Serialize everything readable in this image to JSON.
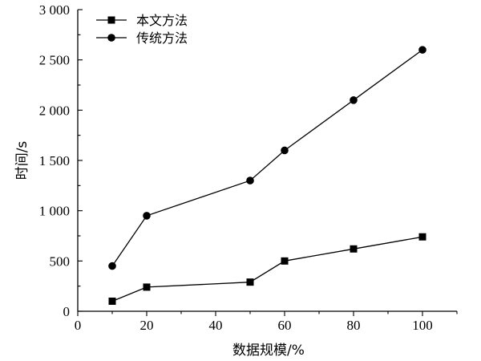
{
  "chart_data": {
    "type": "line",
    "title": "",
    "xlabel": "数据规模/%",
    "ylabel": "时间/s",
    "xlim": [
      0,
      110
    ],
    "ylim": [
      0,
      3000
    ],
    "x_ticks": [
      0,
      20,
      40,
      60,
      80,
      100
    ],
    "x_tick_labels": [
      "0",
      "20",
      "40",
      "60",
      "80",
      "100"
    ],
    "y_ticks": [
      0,
      500,
      1000,
      1500,
      2000,
      2500,
      3000
    ],
    "y_tick_labels": [
      "0",
      "500",
      "1 000",
      "1 500",
      "2 000",
      "2 500",
      "3 000"
    ],
    "grid": false,
    "legend_position": "top-left",
    "series": [
      {
        "name": "本文方法",
        "marker": "square",
        "color": "#000000",
        "x": [
          10,
          20,
          50,
          60,
          80,
          100
        ],
        "y": [
          100,
          240,
          290,
          500,
          620,
          740
        ]
      },
      {
        "name": "传统方法",
        "marker": "circle",
        "color": "#000000",
        "x": [
          10,
          20,
          50,
          60,
          80,
          100
        ],
        "y": [
          450,
          950,
          1300,
          1600,
          2100,
          2600
        ]
      }
    ]
  }
}
